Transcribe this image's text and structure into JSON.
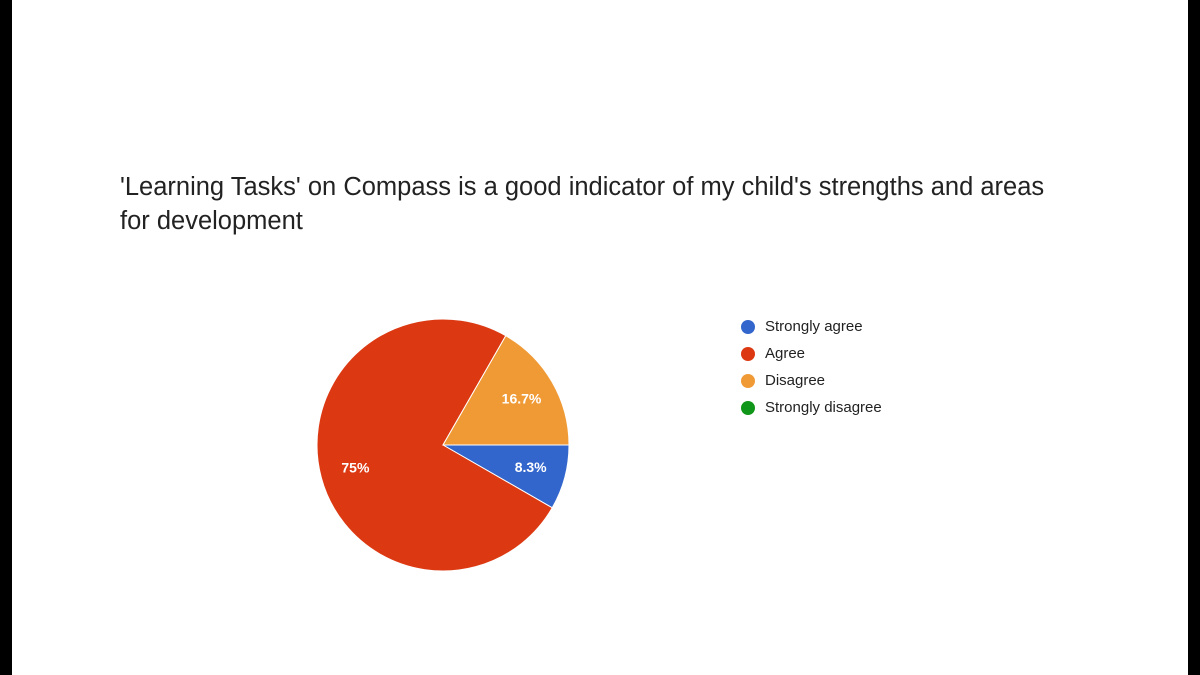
{
  "chart_data": {
    "type": "pie",
    "title": "'Learning Tasks' on Compass is a good indicator of my child's strengths and areas for development",
    "categories": [
      "Strongly agree",
      "Agree",
      "Disagree",
      "Strongly disagree"
    ],
    "values": [
      8.3,
      75,
      16.7,
      0
    ],
    "value_labels": [
      "8.3%",
      "75%",
      "16.7%",
      null
    ],
    "colors": [
      "#3366cc",
      "#dc3912",
      "#f09a35",
      "#109618"
    ],
    "legend": "right"
  }
}
